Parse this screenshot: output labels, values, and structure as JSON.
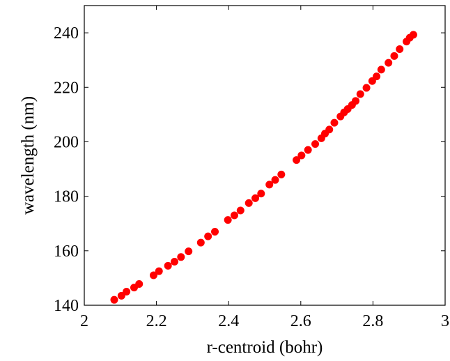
{
  "chart_data": {
    "type": "scatter",
    "xlabel": "r-centroid (bohr)",
    "ylabel": "wavelength (nm)",
    "xlim": [
      2,
      3
    ],
    "ylim": [
      140,
      250
    ],
    "xticks": [
      "2",
      "2.2",
      "2.4",
      "2.6",
      "2.8",
      "3"
    ],
    "yticks": [
      "140",
      "160",
      "180",
      "200",
      "220",
      "240"
    ],
    "grid": false,
    "marker_color": "#ff0000",
    "series": [
      {
        "x": [
          2.083,
          2.103,
          2.117,
          2.138,
          2.152,
          2.192,
          2.207,
          2.232,
          2.25,
          2.268,
          2.289,
          2.323,
          2.343,
          2.362,
          2.398,
          2.416,
          2.433,
          2.456,
          2.474,
          2.49,
          2.513,
          2.529,
          2.546,
          2.588,
          2.602,
          2.62,
          2.64,
          2.657,
          2.667,
          2.679,
          2.693,
          2.71,
          2.72,
          2.73,
          2.742,
          2.752,
          2.765,
          2.782,
          2.798,
          2.81,
          2.823,
          2.843,
          2.859,
          2.874,
          2.893,
          2.902,
          2.912
        ],
        "y": [
          142,
          143.5,
          145,
          146.5,
          147.8,
          151,
          152.5,
          154.5,
          156,
          157.7,
          159.8,
          163,
          165.3,
          167,
          171.3,
          173,
          174.8,
          177.5,
          179.3,
          181,
          184.3,
          186,
          188,
          193.3,
          195,
          197,
          199.2,
          201.3,
          203,
          204.5,
          207,
          209.3,
          210.8,
          212,
          213.5,
          215,
          217.5,
          219.8,
          222.3,
          224,
          226.5,
          229,
          231.5,
          234,
          236.8,
          238.2,
          239.3
        ]
      }
    ]
  }
}
